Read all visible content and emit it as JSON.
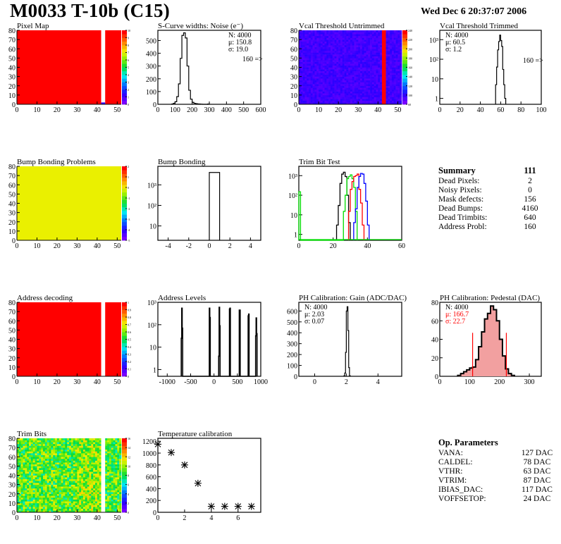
{
  "header": {
    "title": "M0033 T-10b (C15)",
    "date": "Wed Dec  6 20:37:07 2006"
  },
  "colors": {
    "red": "#ff0000",
    "blue": "#0000ff",
    "green": "#00dd00",
    "black": "#000000",
    "yellow_green": "#dfff00",
    "vcal_blue": "#3a2cf0"
  },
  "chart_data": [
    {
      "id": "pixel-map",
      "type": "heatmap",
      "title": "Pixel Map",
      "xlim": [
        0,
        52
      ],
      "ylim": [
        0,
        80
      ],
      "xticks": [
        "0",
        "10",
        "20",
        "30",
        "40",
        "50"
      ],
      "yticks": [
        "0",
        "10",
        "20",
        "30",
        "40",
        "50",
        "60",
        "70",
        "80"
      ],
      "zlim": [
        0,
        10
      ],
      "zticks": [
        "0",
        "1",
        "2",
        "3",
        "4",
        "5",
        "6",
        "7",
        "8",
        "9",
        "10"
      ],
      "fill_value": 10,
      "empty_columns": [
        42,
        43
      ],
      "special_cells": [
        {
          "x": 42,
          "y": 0,
          "value": 1
        }
      ]
    },
    {
      "id": "scurve-noise",
      "type": "histogram",
      "title": "S-Curve widths: Noise (e⁻)",
      "xlim": [
        0,
        600
      ],
      "ylim": [
        0,
        580
      ],
      "xticks": [
        "0",
        "100",
        "200",
        "300",
        "400",
        "500",
        "600"
      ],
      "yticks": [
        "0",
        "100",
        "200",
        "300",
        "400",
        "500"
      ],
      "stats": [
        "N: 4000",
        "μ: 150.8",
        "σ: 19.0"
      ],
      "overflow": "160 =>",
      "bins_x": [
        80,
        90,
        100,
        110,
        120,
        130,
        140,
        150,
        160,
        170,
        180,
        190,
        200,
        210,
        220,
        230,
        240,
        250,
        290
      ],
      "bins_y": [
        2,
        8,
        20,
        60,
        160,
        360,
        540,
        560,
        520,
        300,
        110,
        40,
        15,
        8,
        5,
        3,
        2,
        1,
        2
      ]
    },
    {
      "id": "vcal-untrimmed",
      "type": "heatmap",
      "title": "Vcal Threshold Untrimmed",
      "xlim": [
        0,
        52
      ],
      "ylim": [
        0,
        80
      ],
      "xticks": [
        "0",
        "10",
        "20",
        "30",
        "40",
        "50"
      ],
      "yticks": [
        "0",
        "10",
        "20",
        "30",
        "40",
        "50",
        "60",
        "70",
        "80"
      ],
      "zlim": [
        60,
        240
      ],
      "zticks": [
        "60",
        "100",
        "120",
        "140",
        "160",
        "180",
        "200",
        "220",
        "240"
      ],
      "fill_value": 75,
      "hot_columns": [
        42,
        43
      ]
    },
    {
      "id": "vcal-trimmed",
      "type": "histogram",
      "title": "Vcal Threshold Trimmed",
      "log": true,
      "xlim": [
        0,
        100
      ],
      "ylim": [
        0.5,
        3000
      ],
      "xticks": [
        "0",
        "20",
        "40",
        "60",
        "80",
        "100"
      ],
      "yticks": [
        "1",
        "10",
        "10²",
        "10³"
      ],
      "stats": [
        "N: 4000",
        "μ: 60.5",
        "σ:  1.2"
      ],
      "overflow": "160 =>",
      "bins_x": [
        55,
        56,
        57,
        58,
        59,
        60,
        61,
        62,
        63,
        64
      ],
      "bins_y": [
        5,
        40,
        300,
        800,
        1700,
        900,
        450,
        30,
        5,
        1
      ]
    },
    {
      "id": "bump-bonding-problems",
      "type": "heatmap",
      "title": "Bump Bonding Problems",
      "xlim": [
        0,
        52
      ],
      "ylim": [
        0,
        80
      ],
      "xticks": [
        "0",
        "10",
        "20",
        "30",
        "40",
        "50"
      ],
      "yticks": [
        "0",
        "10",
        "20",
        "30",
        "40",
        "50",
        "60",
        "70",
        "80"
      ],
      "zlim": [
        -5,
        2
      ],
      "zticks": [
        "-5",
        "-4",
        "-3",
        "-2",
        "-1",
        "0",
        "1",
        "2"
      ],
      "fill_value": 0
    },
    {
      "id": "bump-bonding",
      "type": "histogram",
      "title": "Bump Bonding",
      "log": true,
      "xlim": [
        -5,
        5
      ],
      "ylim": [
        2,
        8000
      ],
      "xticks": [
        "-4",
        "-2",
        "0",
        "2",
        "4"
      ],
      "yticks": [
        "10",
        "10²",
        "10³"
      ],
      "bins_x": [
        0
      ],
      "bin_width": 1,
      "bins_y": [
        4000
      ]
    },
    {
      "id": "trim-bit-test",
      "type": "histogram",
      "title": "Trim Bit Test",
      "log": true,
      "xlim": [
        0,
        60
      ],
      "ylim": [
        0.5,
        3000
      ],
      "xticks": [
        "0",
        "20",
        "40",
        "60"
      ],
      "yticks": [
        "1",
        "10",
        "10²",
        "10³"
      ],
      "series": [
        {
          "name": "black",
          "color": "#000000",
          "x": [
            22,
            23,
            24,
            25,
            26,
            27,
            28,
            29
          ],
          "y": [
            3,
            30,
            400,
            1200,
            1500,
            900,
            100,
            4
          ]
        },
        {
          "name": "green",
          "color": "#00dd00",
          "x": [
            0,
            26,
            27,
            28,
            29,
            30,
            31,
            32,
            33
          ],
          "y": [
            150,
            15,
            100,
            700,
            900,
            1100,
            700,
            250,
            15
          ]
        },
        {
          "name": "red",
          "color": "#ff0000",
          "x": [
            29,
            30,
            31,
            32,
            33,
            34,
            35,
            36,
            37
          ],
          "y": [
            15,
            200,
            500,
            900,
            1000,
            1200,
            200,
            40,
            3
          ]
        },
        {
          "name": "blue",
          "color": "#0000ff",
          "x": [
            32,
            33,
            34,
            35,
            36,
            37,
            38,
            39,
            40
          ],
          "y": [
            4,
            20,
            250,
            900,
            1300,
            1200,
            400,
            50,
            3
          ]
        }
      ]
    },
    {
      "id": "address-decoding",
      "type": "heatmap",
      "title": "Address decoding",
      "xlim": [
        0,
        52
      ],
      "ylim": [
        0,
        80
      ],
      "xticks": [
        "0",
        "10",
        "20",
        "30",
        "40",
        "50"
      ],
      "yticks": [
        "0",
        "10",
        "20",
        "30",
        "40",
        "50",
        "60",
        "70",
        "80"
      ],
      "zlim": [
        0,
        1
      ],
      "zticks": [
        "0",
        "0.1",
        "0.2",
        "0.3",
        "0.4",
        "0.5",
        "0.6",
        "0.7",
        "0.8",
        "0.9",
        "1"
      ],
      "fill_value": 1,
      "empty_columns": [
        42,
        43
      ]
    },
    {
      "id": "address-levels",
      "type": "histogram",
      "title": "Address Levels",
      "log": true,
      "xlim": [
        -1200,
        1000
      ],
      "ylim": [
        0.5,
        1000
      ],
      "xticks": [
        "-1000",
        "-500",
        "0",
        "500",
        "1000"
      ],
      "yticks": [
        "1",
        "10",
        "10²",
        "10³"
      ],
      "bins_x": [
        -700,
        -690,
        -680,
        -100,
        -90,
        100,
        110,
        120,
        330,
        340,
        540,
        550,
        730,
        740,
        890,
        900,
        910
      ],
      "bins_y": [
        25,
        550,
        70,
        550,
        210,
        4,
        600,
        90,
        500,
        550,
        450,
        450,
        250,
        300,
        32,
        200,
        40
      ]
    },
    {
      "id": "ph-gain",
      "type": "histogram",
      "title": "PH Calibration: Gain (ADC/DAC)",
      "xlim": [
        -1,
        5.5
      ],
      "ylim": [
        0,
        680
      ],
      "xticks": [
        "0",
        "2",
        "4"
      ],
      "yticks": [
        "0",
        "100",
        "200",
        "300",
        "400",
        "500",
        "600"
      ],
      "stats": [
        "N: 4000",
        "μ: 2.03",
        "σ: 0.07"
      ],
      "bins_x": [
        1.85,
        1.9,
        1.95,
        2.0,
        2.05,
        2.1,
        2.15,
        2.2
      ],
      "bins_y": [
        5,
        30,
        220,
        600,
        640,
        420,
        80,
        5
      ]
    },
    {
      "id": "ph-pedestal",
      "type": "histogram",
      "title": "PH Calibration: Pedestal (DAC)",
      "xlim": [
        0,
        340
      ],
      "ylim": [
        0,
        80
      ],
      "xticks": [
        "0",
        "100",
        "200",
        "300"
      ],
      "yticks": [
        "0",
        "20",
        "40",
        "60",
        "80"
      ],
      "stats": [
        "N: 4000",
        "μ: 166.7",
        "σ: 22.7"
      ],
      "cut_lines": [
        110,
        223
      ],
      "cut_height": 47,
      "bins_x": [
        60,
        70,
        80,
        90,
        100,
        110,
        120,
        130,
        140,
        150,
        160,
        170,
        180,
        190,
        200,
        210,
        220,
        230,
        240
      ],
      "bins_y": [
        1,
        3,
        5,
        7,
        9,
        10,
        18,
        32,
        48,
        62,
        68,
        76,
        72,
        60,
        40,
        22,
        8,
        3,
        1
      ]
    },
    {
      "id": "trim-bits",
      "type": "heatmap",
      "title": "Trim Bits",
      "xlim": [
        0,
        52
      ],
      "ylim": [
        0,
        80
      ],
      "xticks": [
        "0",
        "10",
        "20",
        "30",
        "40",
        "50"
      ],
      "yticks": [
        "0",
        "10",
        "20",
        "30",
        "40",
        "50",
        "60",
        "70",
        "80"
      ],
      "zlim": [
        0,
        16
      ],
      "zticks": [
        "0",
        "2",
        "4",
        "6",
        "8",
        "10",
        "12",
        "14",
        "16"
      ],
      "fill_value": 9,
      "empty_columns": [
        42,
        43
      ]
    },
    {
      "id": "temperature-calibration",
      "type": "scatter",
      "title": "Temperature calibration",
      "xlim": [
        0,
        7.7
      ],
      "ylim": [
        0,
        1250
      ],
      "xticks": [
        "0",
        "2",
        "4",
        "6"
      ],
      "yticks": [
        "0",
        "200",
        "400",
        "600",
        "800",
        "1000",
        "1200"
      ],
      "x": [
        0,
        1,
        2,
        3,
        4,
        5,
        6,
        7
      ],
      "y": [
        1150,
        1010,
        800,
        490,
        100,
        100,
        100,
        100
      ]
    }
  ],
  "summary": {
    "title": "Summary",
    "value": "111",
    "rows": [
      {
        "label": "Dead Pixels:",
        "value": "2"
      },
      {
        "label": "Noisy Pixels:",
        "value": "0"
      },
      {
        "label": "Mask defects:",
        "value": "156"
      },
      {
        "label": "Dead Bumps:",
        "value": "4160"
      },
      {
        "label": "Dead Trimbits:",
        "value": "640"
      },
      {
        "label": "Address Probl:",
        "value": "160"
      }
    ]
  },
  "op_parameters": {
    "title": "Op. Parameters",
    "rows": [
      {
        "label": "VANA:",
        "value": "127 DAC"
      },
      {
        "label": "CALDEL:",
        "value": "78 DAC"
      },
      {
        "label": "VTHR:",
        "value": "63 DAC"
      },
      {
        "label": "VTRIM:",
        "value": "87 DAC"
      },
      {
        "label": "IBIAS_DAC:",
        "value": "117 DAC"
      },
      {
        "label": "VOFFSETOP:",
        "value": "24 DAC"
      }
    ]
  }
}
